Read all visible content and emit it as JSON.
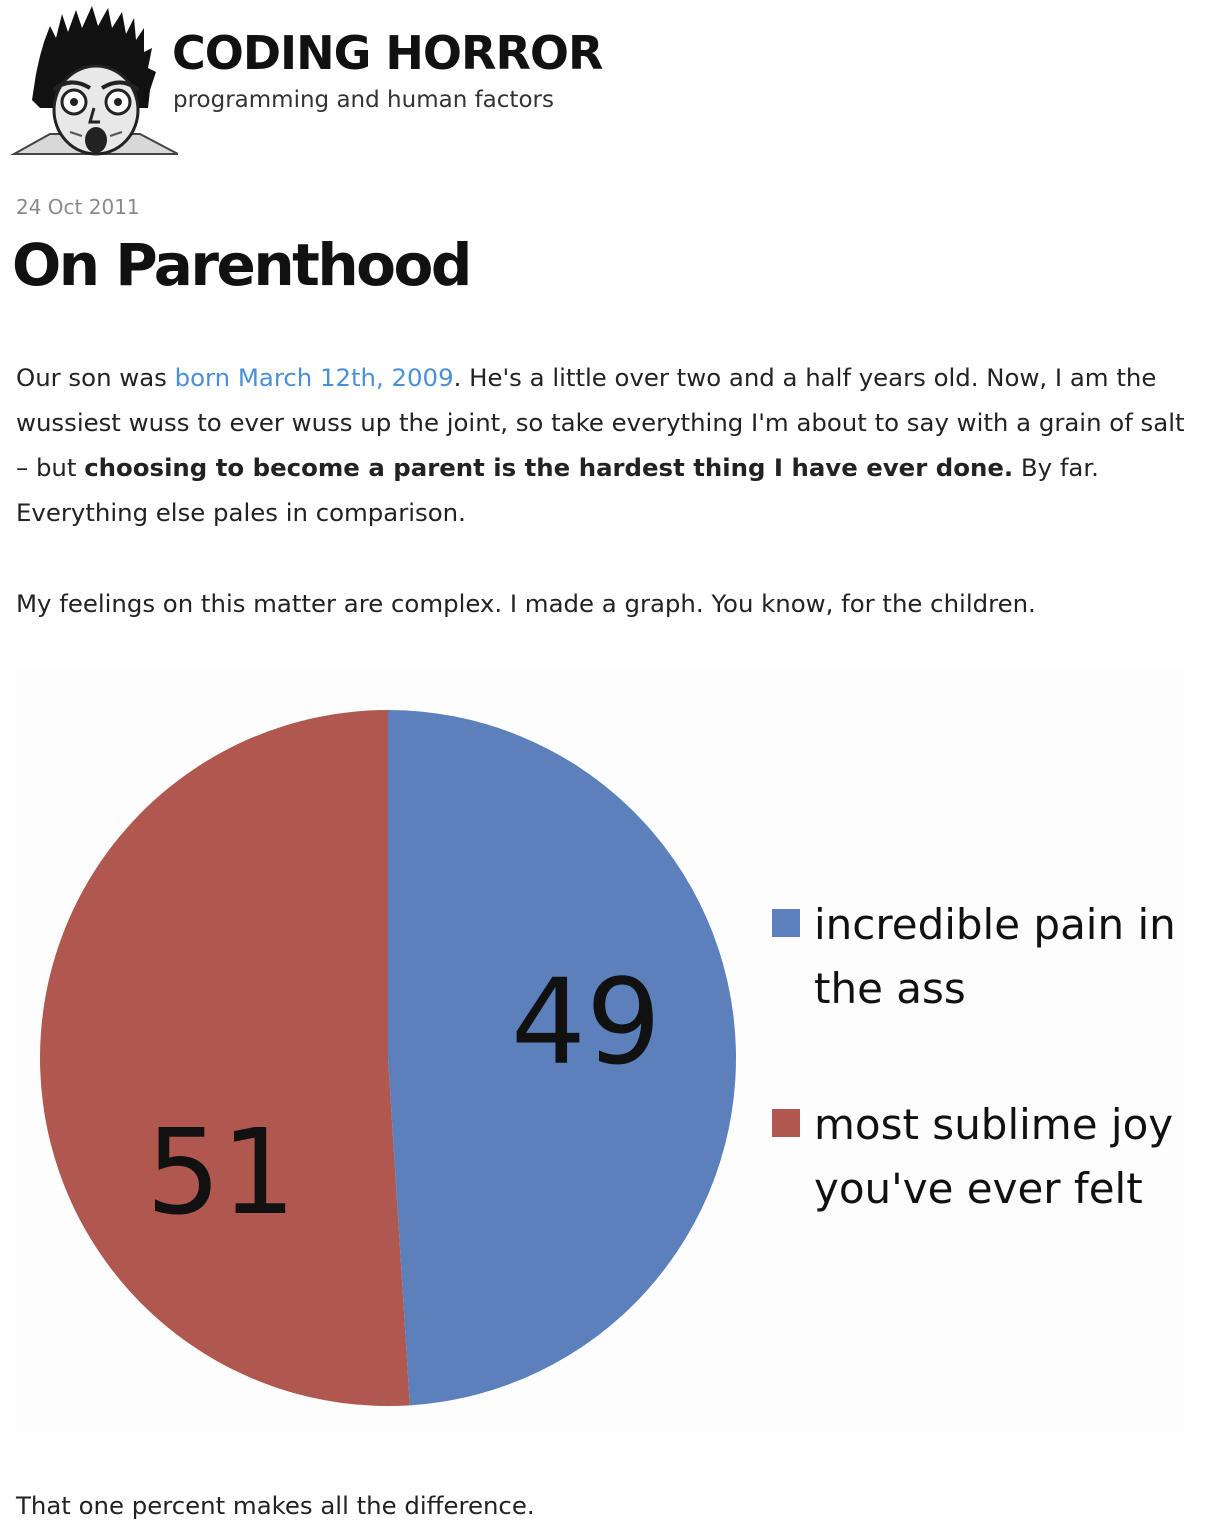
{
  "site": {
    "title": "CODING HORROR",
    "tagline": "programming and human factors",
    "logo_icon": "screaming-face-logo-icon"
  },
  "post": {
    "date": "24 Oct 2011",
    "title": "On Parenthood",
    "p1": {
      "lead": "Our son was ",
      "link": "born March 12th, 2009",
      "mid": ". He's a little over two and a half years old. Now, I am the wussiest wuss to ever wuss up the joint, so take everything I'm about to say with a grain of salt – but ",
      "bold": "choosing to become a parent is the hardest thing I have ever done.",
      "tail": " By far. Everything else pales in comparison."
    },
    "p2": "My feelings on this matter are complex. I made a graph. You know, for the children.",
    "p3": "That one percent makes all the difference."
  },
  "colors": {
    "link": "#4a90d9",
    "pain": "#5b80bb",
    "joy": "#b05850"
  },
  "chart_data": {
    "type": "pie",
    "title": "",
    "slices": [
      {
        "label": "incredible pain in the ass",
        "legend_lines": [
          "incredible pain in",
          "the ass"
        ],
        "value": 49,
        "color": "#5b80bb"
      },
      {
        "label": "most sublime joy you've ever felt",
        "legend_lines": [
          "most sublime joy",
          "you've ever felt"
        ],
        "value": 51,
        "color": "#b05850"
      }
    ],
    "start_angle": "12 o'clock",
    "direction": "clockwise",
    "legend_position": "right"
  }
}
